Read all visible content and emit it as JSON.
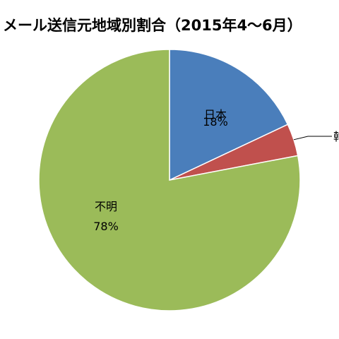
{
  "chart_data": {
    "type": "pie",
    "title": "メール送信元地域別割合（2015年4～6月）",
    "slices": [
      {
        "label": "日本",
        "value": 18,
        "value_label": "18%",
        "color": "#4a7ebb"
      },
      {
        "label": "韓",
        "value": 4,
        "value_label": "",
        "color": "#c0504d"
      },
      {
        "label": "不明",
        "value": 78,
        "value_label": "78%",
        "color": "#9bbb59"
      }
    ],
    "legend": "none"
  }
}
